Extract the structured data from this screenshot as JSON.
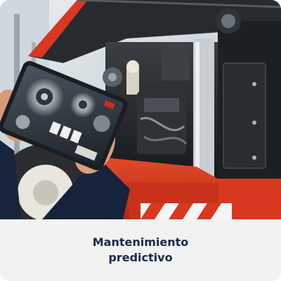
{
  "card": {
    "title": "Mantenimiento\npredictivo",
    "image_subject": "technician holding tablet showing engine diagram in front of open forklift engine compartment"
  },
  "colors": {
    "title_text": "#18294a",
    "caption_bg": "#f2f2f2",
    "vehicle_red": "#d8381f"
  }
}
